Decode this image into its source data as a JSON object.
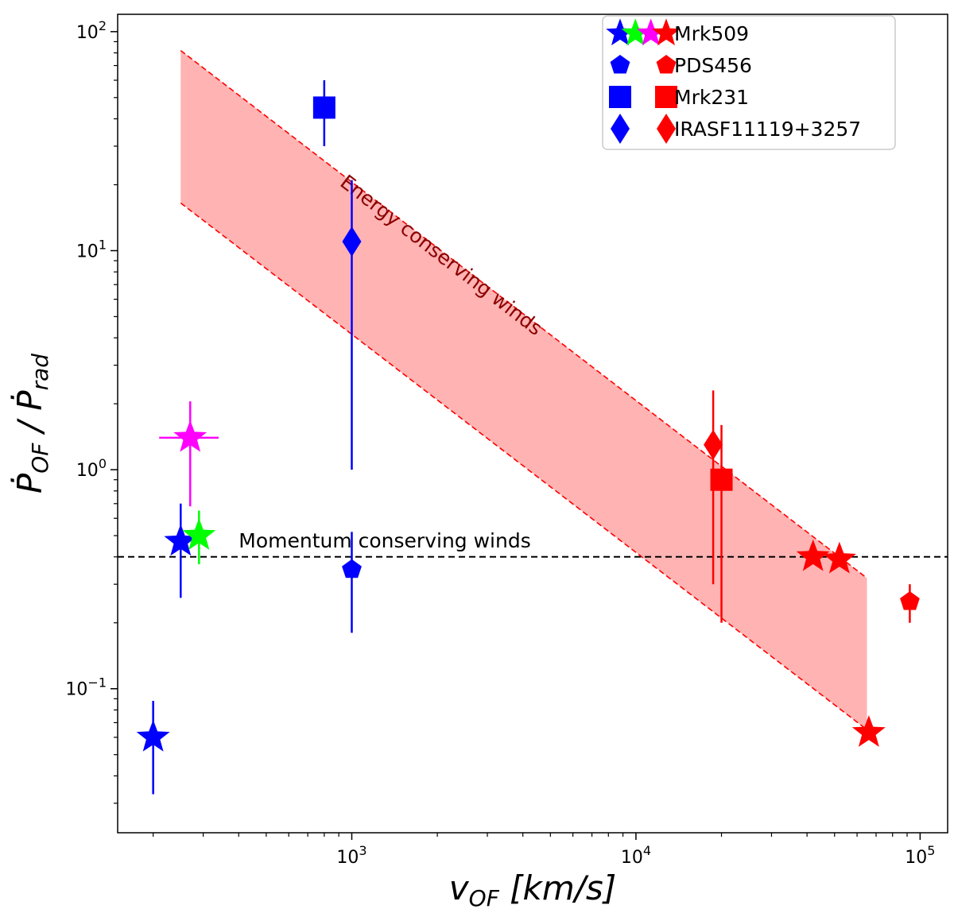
{
  "chart_data": {
    "type": "scatter",
    "title": "",
    "xlabel": "v_OF [km/s]",
    "ylabel": "Ṗ_OF / Ṗ_rad",
    "xscale": "log",
    "yscale": "log",
    "xlim": [
      150,
      125000
    ],
    "ylim": [
      0.022,
      120
    ],
    "x_ticks": [
      {
        "value": 1000,
        "mantissa": "10",
        "exp": "3"
      },
      {
        "value": 10000,
        "mantissa": "10",
        "exp": "4"
      },
      {
        "value": 100000,
        "mantissa": "10",
        "exp": "5"
      }
    ],
    "y_ticks": [
      {
        "value": 0.1,
        "mantissa": "10",
        "exp": "−1"
      },
      {
        "value": 1,
        "mantissa": "10",
        "exp": "0"
      },
      {
        "value": 10,
        "mantissa": "10",
        "exp": "1"
      },
      {
        "value": 100,
        "mantissa": "10",
        "exp": "2"
      }
    ],
    "grid": false,
    "legend_position": "top-right",
    "colors": {
      "blue": "#0000ff",
      "green": "#00ff00",
      "magenta": "#ff00ff",
      "red": "#ff0000",
      "band_fill": "#ffb3b3",
      "band_edge": "#ff0000",
      "annotation": "#8b0000",
      "line": "#000000"
    },
    "legend": [
      {
        "label": "Mrk509",
        "marker": "star",
        "colors": [
          "#0000ff",
          "#00ff00",
          "#ff00ff",
          "#ff0000"
        ]
      },
      {
        "label": "PDS456",
        "marker": "pentagon",
        "colors": [
          "#0000ff",
          "#ff0000"
        ]
      },
      {
        "label": "Mrk231",
        "marker": "square",
        "colors": [
          "#0000ff",
          "#ff0000"
        ]
      },
      {
        "label": "IRASF11119+3257",
        "marker": "diamond",
        "colors": [
          "#0000ff",
          "#ff0000"
        ]
      }
    ],
    "reference_line": {
      "y": 0.4,
      "label": "Momentum conserving winds"
    },
    "band": {
      "label": "Energy conserving winds",
      "x": [
        250,
        65000
      ],
      "upper": [
        82,
        0.32
      ],
      "lower": [
        16.5,
        0.065
      ]
    },
    "points": [
      {
        "object": "Mrk509",
        "marker": "star",
        "color": "#0000ff",
        "x": 200,
        "y": 0.06,
        "ylo": 0.033,
        "yhi": 0.088
      },
      {
        "object": "Mrk509",
        "marker": "star",
        "color": "#0000ff",
        "x": 250,
        "y": 0.47,
        "ylo": 0.26,
        "yhi": 0.7
      },
      {
        "object": "Mrk509",
        "marker": "star",
        "color": "#00ff00",
        "x": 290,
        "y": 0.5,
        "ylo": 0.37,
        "yhi": 0.65
      },
      {
        "object": "Mrk509",
        "marker": "star",
        "color": "#ff00ff",
        "x": 270,
        "y": 1.4,
        "ylo": 0.68,
        "yhi": 2.05,
        "xlo": 210,
        "xhi": 340
      },
      {
        "object": "Mrk509",
        "marker": "star",
        "color": "#ff0000",
        "x": 42000,
        "y": 0.4
      },
      {
        "object": "Mrk509",
        "marker": "star",
        "color": "#ff0000",
        "x": 52000,
        "y": 0.39
      },
      {
        "object": "Mrk509",
        "marker": "star",
        "color": "#ff0000",
        "x": 66000,
        "y": 0.063
      },
      {
        "object": "PDS456",
        "marker": "pentagon",
        "color": "#0000ff",
        "x": 1000,
        "y": 0.35,
        "ylo": 0.18,
        "yhi": 0.52
      },
      {
        "object": "PDS456",
        "marker": "pentagon",
        "color": "#ff0000",
        "x": 92000,
        "y": 0.25,
        "ylo": 0.2,
        "yhi": 0.3
      },
      {
        "object": "Mrk231",
        "marker": "square",
        "color": "#0000ff",
        "x": 800,
        "y": 45,
        "ylo": 30,
        "yhi": 60
      },
      {
        "object": "Mrk231",
        "marker": "square",
        "color": "#ff0000",
        "x": 20000,
        "y": 0.9,
        "ylo": 0.2,
        "yhi": 1.6
      },
      {
        "object": "IRASF11119+3257",
        "marker": "diamond",
        "color": "#0000ff",
        "x": 1000,
        "y": 11,
        "ylo": 1.0,
        "yhi": 21
      },
      {
        "object": "IRASF11119+3257",
        "marker": "diamond",
        "color": "#ff0000",
        "x": 18700,
        "y": 1.3,
        "ylo": 0.3,
        "yhi": 2.3
      }
    ]
  }
}
